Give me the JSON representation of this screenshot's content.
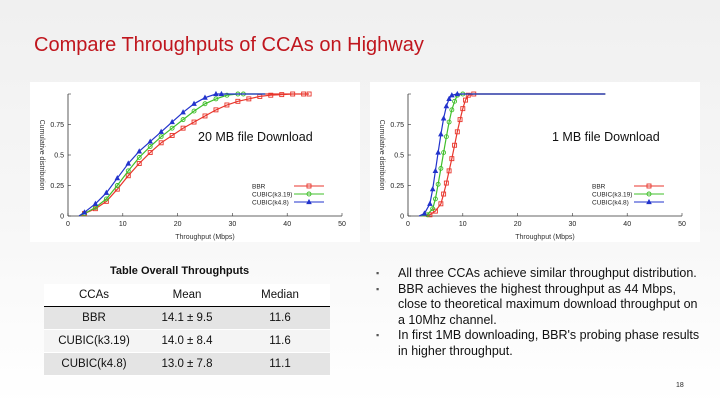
{
  "slide": {
    "title": "Compare Throughputs of CCAs on Highway",
    "page_number": "18"
  },
  "chart_data": [
    {
      "type": "line",
      "title": "20 MB file Download",
      "xlabel": "Throughput (Mbps)",
      "ylabel": "Cumulative distribution",
      "xlim": [
        0,
        50
      ],
      "ylim": [
        0,
        1
      ],
      "xticks": [
        "0",
        "10",
        "20",
        "30",
        "40",
        "50"
      ],
      "yticks": [
        "0",
        "0.25",
        "0.5",
        "0.75",
        ""
      ],
      "legend_position": "bottom-right",
      "series": [
        {
          "name": "BBR",
          "color": "#e8362c",
          "marker": "square",
          "x": [
            3,
            5,
            7,
            9,
            11,
            13,
            15,
            17,
            19,
            21,
            23,
            25,
            27,
            29,
            31,
            33,
            35,
            37,
            39,
            41,
            43,
            44
          ],
          "y": [
            0.02,
            0.06,
            0.12,
            0.22,
            0.33,
            0.43,
            0.52,
            0.6,
            0.66,
            0.72,
            0.77,
            0.82,
            0.87,
            0.91,
            0.94,
            0.96,
            0.98,
            0.99,
            0.995,
            1.0,
            1.0,
            1.0
          ]
        },
        {
          "name": "CUBIC(k3.19)",
          "color": "#3fbf2a",
          "marker": "circle",
          "x": [
            3,
            5,
            7,
            9,
            11,
            13,
            15,
            17,
            19,
            21,
            23,
            25,
            27,
            29,
            31,
            32
          ],
          "y": [
            0.02,
            0.07,
            0.14,
            0.25,
            0.37,
            0.48,
            0.57,
            0.65,
            0.72,
            0.79,
            0.86,
            0.92,
            0.96,
            0.99,
            1.0,
            1.0
          ]
        },
        {
          "name": "CUBIC(k4.8)",
          "color": "#2233cc",
          "marker": "triangle",
          "x": [
            3,
            5,
            7,
            9,
            11,
            13,
            15,
            17,
            19,
            21,
            23,
            25,
            27,
            28
          ],
          "y": [
            0.03,
            0.1,
            0.19,
            0.31,
            0.43,
            0.53,
            0.61,
            0.69,
            0.77,
            0.85,
            0.92,
            0.97,
            1.0,
            1.0
          ]
        }
      ]
    },
    {
      "type": "line",
      "title": "1 MB file Download",
      "xlabel": "Throughput (Mbps)",
      "ylabel": "Cumulative distribution",
      "xlim": [
        0,
        50
      ],
      "ylim": [
        0,
        1
      ],
      "xticks": [
        "0",
        "10",
        "20",
        "30",
        "40",
        "50"
      ],
      "yticks": [
        "0",
        "0.25",
        "0.5",
        "0.75",
        ""
      ],
      "legend_position": "bottom-right",
      "series": [
        {
          "name": "BBR",
          "color": "#e8362c",
          "marker": "square",
          "x": [
            4,
            5,
            6,
            6.5,
            7,
            7.5,
            8,
            8.5,
            9,
            9.5,
            10,
            10.5,
            11,
            12
          ],
          "y": [
            0.01,
            0.04,
            0.1,
            0.18,
            0.27,
            0.37,
            0.47,
            0.58,
            0.69,
            0.79,
            0.88,
            0.95,
            0.99,
            1.0
          ]
        },
        {
          "name": "CUBIC(k3.19)",
          "color": "#3fbf2a",
          "marker": "circle",
          "x": [
            3.5,
            4.5,
            5,
            5.5,
            6,
            6.5,
            7,
            7.5,
            8,
            8.5,
            9,
            10
          ],
          "y": [
            0.01,
            0.06,
            0.14,
            0.26,
            0.39,
            0.52,
            0.65,
            0.77,
            0.87,
            0.94,
            0.99,
            1.0
          ]
        },
        {
          "name": "CUBIC(k4.8)",
          "color": "#2233cc",
          "marker": "triangle",
          "x": [
            3,
            4,
            4.5,
            5,
            5.5,
            6,
            6.5,
            7,
            7.5,
            8,
            9
          ],
          "y": [
            0.02,
            0.1,
            0.22,
            0.37,
            0.52,
            0.67,
            0.8,
            0.9,
            0.96,
            0.99,
            1.0
          ]
        }
      ]
    }
  ],
  "table": {
    "title": "Table Overall Throughputs",
    "headers": [
      "CCAs",
      "Mean",
      "Median"
    ],
    "rows": [
      [
        "BBR",
        "14.1 ± 9.5",
        "11.6"
      ],
      [
        "CUBIC(k3.19)",
        "14.0 ± 8.4",
        "11.6"
      ],
      [
        "CUBIC(k4.8)",
        "13.0 ± 7.8",
        "11.1"
      ]
    ]
  },
  "bullets": [
    "All three CCAs achieve similar throughput distribution.",
    "BBR achieves the highest throughput as 44 Mbps, close to theoretical maximum download throughput on a 10Mhz channel.",
    "In first 1MB downloading, BBR's probing phase results in higher throughput."
  ],
  "bullet_symbol": "▪"
}
